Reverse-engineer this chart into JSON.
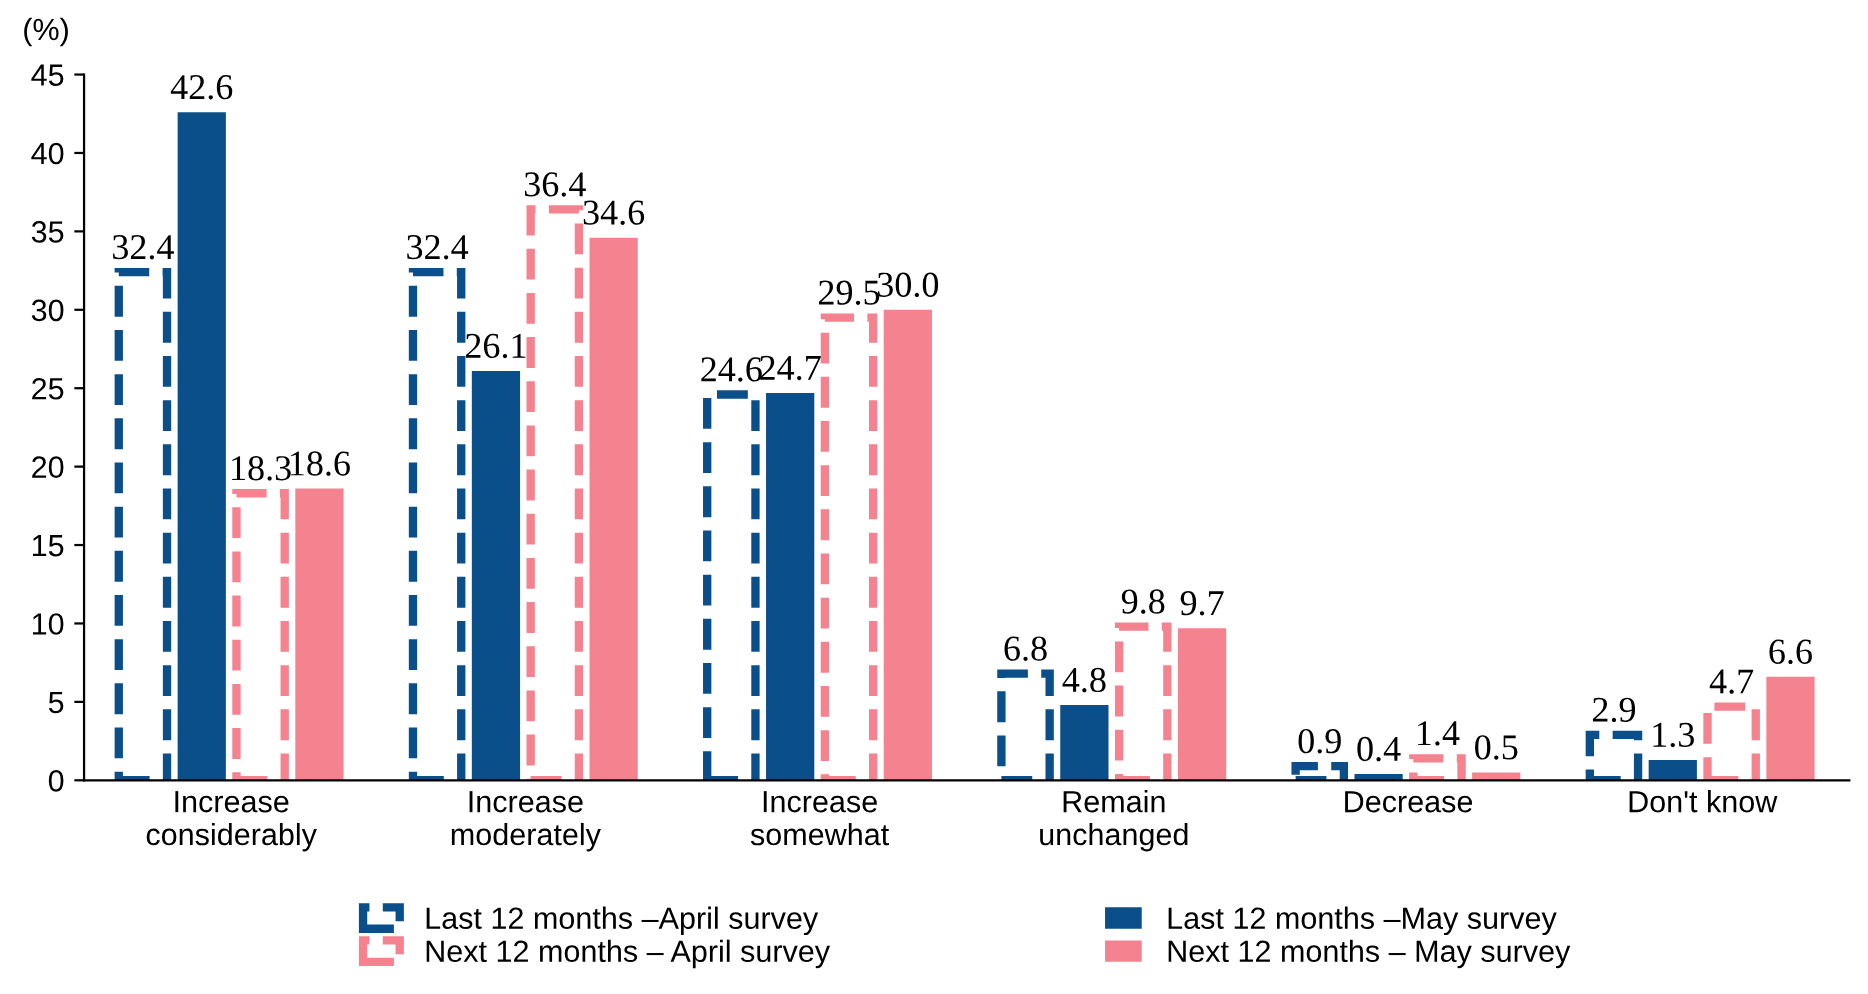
{
  "chart_data": {
    "type": "bar",
    "ylabel": "(%)",
    "categories": [
      "Increase\nconsiderably",
      "Increase\nmoderately",
      "Increase\nsomewhat",
      "Remain\nunchanged",
      "Decrease",
      "Don't know"
    ],
    "series": [
      {
        "name": "Last 12 months –April survey",
        "color": "#0b4f8a",
        "line_style": "dashed",
        "values": [
          32.4,
          32.4,
          24.6,
          6.8,
          0.9,
          2.9
        ],
        "value_labels": [
          "32.4",
          "32.4",
          "24.6",
          "6.8",
          "0.9",
          "2.9"
        ]
      },
      {
        "name": "Last 12 months –May survey",
        "color": "#0b4f8a",
        "line_style": "solid",
        "values": [
          42.6,
          26.1,
          24.7,
          4.8,
          0.4,
          1.3
        ],
        "value_labels": [
          "42.6",
          "26.1",
          "24.7",
          "4.8",
          "0.4",
          "1.3"
        ]
      },
      {
        "name": "Next 12 months – April survey",
        "color": "#f4838f",
        "line_style": "dashed",
        "values": [
          18.3,
          36.4,
          29.5,
          9.8,
          1.4,
          4.7
        ],
        "value_labels": [
          "18.3",
          "36.4",
          "29.5",
          "9.8",
          "1.4",
          "4.7"
        ]
      },
      {
        "name": "Next 12 months – May survey",
        "color": "#f4838f",
        "line_style": "solid",
        "values": [
          18.6,
          34.6,
          30.0,
          9.7,
          0.5,
          6.6
        ],
        "value_labels": [
          "18.6",
          "34.6",
          "30.0",
          "9.7",
          "0.5",
          "6.6"
        ]
      }
    ],
    "ylim": [
      0,
      45
    ],
    "yticks": [
      0,
      5,
      10,
      15,
      20,
      25,
      30,
      35,
      40,
      45
    ],
    "grid": false,
    "legend": "bottom"
  }
}
